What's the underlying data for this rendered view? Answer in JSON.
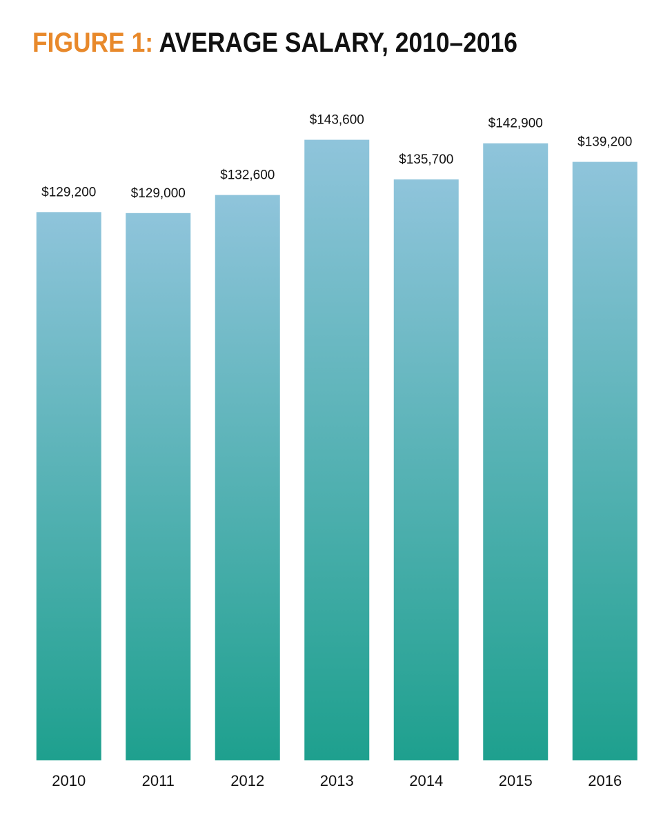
{
  "chart_data": {
    "type": "bar",
    "figure_label": "FIGURE 1:",
    "title": "AVERAGE SALARY, 2010–2016",
    "categories": [
      "2010",
      "2011",
      "2012",
      "2013",
      "2014",
      "2015",
      "2016"
    ],
    "values": [
      129200,
      129000,
      132600,
      143600,
      135700,
      142900,
      139200
    ],
    "value_labels": [
      "$129,200",
      "$129,000",
      "$132,600",
      "$143,600",
      "$135,700",
      "$142,900",
      "$139,200"
    ],
    "gradient": [
      "#8fc4db",
      "#1ea08e"
    ],
    "title_colors": [
      "#e8892b",
      "#111111"
    ],
    "ylim": [
      20000,
      150000
    ],
    "grid": false
  }
}
